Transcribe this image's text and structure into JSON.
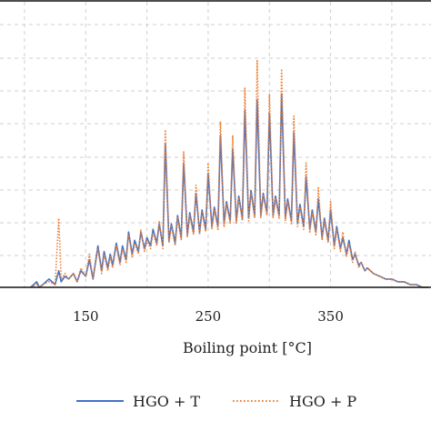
{
  "chart_data": {
    "type": "line",
    "title": "",
    "xlabel": "Boiling point [°C]",
    "ylabel": "",
    "xlim": [
      80,
      432
    ],
    "ylim": [
      0,
      1.0
    ],
    "grid": true,
    "legend_position": "bottom",
    "x_ticks": [
      150,
      250,
      350
    ],
    "x_tick_labels": [
      "150",
      "250",
      "350"
    ],
    "series": [
      {
        "name": "HGO + T",
        "color": "#4472C4",
        "style": "solid",
        "x": [
          105,
          110,
          112,
          115,
          120,
          125,
          128,
          130,
          133,
          136,
          140,
          143,
          146,
          150,
          153,
          156,
          160,
          163,
          165,
          168,
          170,
          172,
          175,
          178,
          180,
          183,
          185,
          188,
          190,
          193,
          195,
          198,
          200,
          203,
          205,
          208,
          210,
          213,
          215,
          218,
          220,
          223,
          225,
          228,
          230,
          233,
          235,
          238,
          240,
          243,
          245,
          248,
          250,
          253,
          255,
          258,
          260,
          263,
          265,
          268,
          270,
          273,
          275,
          278,
          280,
          283,
          285,
          288,
          290,
          293,
          295,
          298,
          300,
          303,
          305,
          308,
          310,
          313,
          315,
          318,
          320,
          323,
          325,
          328,
          330,
          333,
          335,
          338,
          340,
          343,
          345,
          348,
          350,
          353,
          355,
          358,
          360,
          363,
          365,
          368,
          370,
          373,
          375,
          378,
          380,
          385,
          390,
          395,
          400,
          405,
          410,
          415,
          420,
          425,
          430
        ],
        "values": [
          0.0,
          0.02,
          0.0,
          0.01,
          0.03,
          0.01,
          0.06,
          0.02,
          0.04,
          0.03,
          0.05,
          0.02,
          0.06,
          0.04,
          0.1,
          0.03,
          0.15,
          0.06,
          0.13,
          0.07,
          0.12,
          0.08,
          0.16,
          0.09,
          0.15,
          0.1,
          0.2,
          0.12,
          0.17,
          0.13,
          0.2,
          0.14,
          0.18,
          0.15,
          0.21,
          0.16,
          0.23,
          0.15,
          0.52,
          0.17,
          0.23,
          0.16,
          0.26,
          0.18,
          0.45,
          0.19,
          0.27,
          0.2,
          0.34,
          0.2,
          0.28,
          0.21,
          0.41,
          0.22,
          0.29,
          0.22,
          0.55,
          0.23,
          0.31,
          0.24,
          0.5,
          0.24,
          0.33,
          0.25,
          0.64,
          0.25,
          0.35,
          0.26,
          0.68,
          0.26,
          0.34,
          0.27,
          0.63,
          0.26,
          0.33,
          0.26,
          0.7,
          0.25,
          0.32,
          0.24,
          0.56,
          0.23,
          0.3,
          0.22,
          0.4,
          0.21,
          0.28,
          0.2,
          0.32,
          0.18,
          0.25,
          0.17,
          0.28,
          0.15,
          0.22,
          0.14,
          0.18,
          0.12,
          0.17,
          0.1,
          0.12,
          0.08,
          0.09,
          0.06,
          0.07,
          0.05,
          0.04,
          0.03,
          0.03,
          0.02,
          0.02,
          0.01,
          0.01,
          0.0,
          0.0
        ],
        "alt_offsets": [
          0,
          0,
          0,
          0,
          0,
          0,
          0,
          0,
          0,
          0,
          0,
          0,
          0,
          0,
          0,
          0,
          0,
          0,
          0,
          0,
          0,
          0,
          0,
          0,
          0,
          0,
          0,
          0,
          0,
          0,
          0,
          0,
          0,
          0,
          0,
          0,
          0,
          0,
          0,
          0,
          0,
          0,
          0,
          0,
          0,
          0,
          0,
          0,
          0,
          0,
          0,
          0,
          0,
          0,
          0,
          0,
          0,
          0,
          0,
          0,
          0,
          0,
          0,
          0,
          0,
          0,
          0,
          0,
          0,
          0,
          0,
          0,
          0,
          0,
          0,
          0,
          0,
          0,
          0,
          0,
          0,
          0,
          0,
          0,
          0,
          0,
          0,
          0,
          0,
          0,
          0,
          0,
          0,
          0,
          0,
          0,
          0,
          0,
          0,
          0,
          0,
          0,
          0,
          0,
          0,
          0,
          0,
          0,
          0,
          0,
          0,
          0,
          0,
          0,
          0
        ]
      },
      {
        "name": "HGO + P",
        "color": "#ED7D31",
        "style": "dotted",
        "x": [
          105,
          110,
          112,
          115,
          120,
          125,
          128,
          130,
          133,
          136,
          140,
          143,
          146,
          150,
          153,
          156,
          160,
          163,
          165,
          168,
          170,
          172,
          175,
          178,
          180,
          183,
          185,
          188,
          190,
          193,
          195,
          198,
          200,
          203,
          205,
          208,
          210,
          213,
          215,
          218,
          220,
          223,
          225,
          228,
          230,
          233,
          235,
          238,
          240,
          243,
          245,
          248,
          250,
          253,
          255,
          258,
          260,
          263,
          265,
          268,
          270,
          273,
          275,
          278,
          280,
          283,
          285,
          288,
          290,
          293,
          295,
          298,
          300,
          303,
          305,
          308,
          310,
          313,
          315,
          318,
          320,
          323,
          325,
          328,
          330,
          333,
          335,
          338,
          340,
          343,
          345,
          348,
          350,
          353,
          355,
          358,
          360,
          363,
          365,
          368,
          370,
          373,
          375,
          378,
          380,
          385,
          390,
          395,
          400,
          405,
          410,
          415,
          420,
          425,
          430
        ],
        "values": [
          0.0,
          0.01,
          0.0,
          0.01,
          0.02,
          0.01,
          0.25,
          0.03,
          0.05,
          0.03,
          0.05,
          0.02,
          0.07,
          0.04,
          0.12,
          0.03,
          0.14,
          0.05,
          0.12,
          0.06,
          0.11,
          0.07,
          0.15,
          0.08,
          0.14,
          0.09,
          0.19,
          0.11,
          0.16,
          0.12,
          0.21,
          0.13,
          0.17,
          0.14,
          0.2,
          0.15,
          0.24,
          0.14,
          0.57,
          0.16,
          0.22,
          0.15,
          0.25,
          0.17,
          0.49,
          0.18,
          0.26,
          0.19,
          0.37,
          0.19,
          0.27,
          0.2,
          0.45,
          0.21,
          0.28,
          0.21,
          0.6,
          0.22,
          0.3,
          0.23,
          0.55,
          0.23,
          0.32,
          0.24,
          0.72,
          0.24,
          0.34,
          0.25,
          0.82,
          0.25,
          0.33,
          0.26,
          0.7,
          0.25,
          0.32,
          0.25,
          0.79,
          0.24,
          0.31,
          0.23,
          0.62,
          0.22,
          0.29,
          0.21,
          0.45,
          0.2,
          0.27,
          0.19,
          0.36,
          0.17,
          0.24,
          0.16,
          0.31,
          0.14,
          0.21,
          0.13,
          0.2,
          0.11,
          0.16,
          0.09,
          0.13,
          0.07,
          0.09,
          0.06,
          0.07,
          0.05,
          0.04,
          0.03,
          0.03,
          0.02,
          0.02,
          0.01,
          0.01,
          0.0,
          0.0
        ]
      }
    ]
  }
}
